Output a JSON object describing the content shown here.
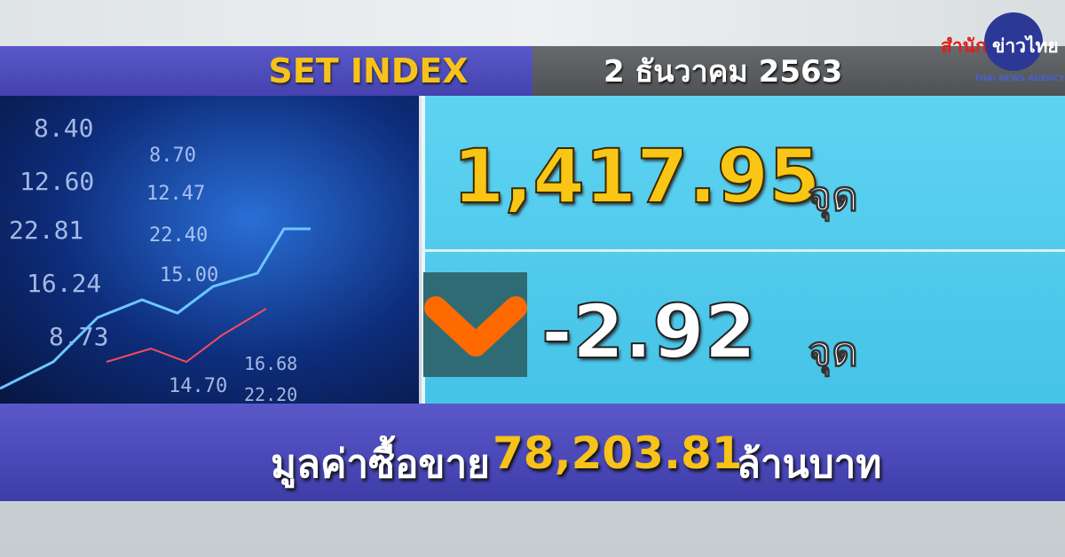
{
  "header": {
    "title": "SET INDEX",
    "date": "2 ธันวาคม 2563"
  },
  "logo": {
    "th_red": "สำนัก",
    "th_white": "ข่าวไทย",
    "en": "THAI NEWS AGENCY"
  },
  "index": {
    "value": "1,417.95",
    "unit": "จุด"
  },
  "change": {
    "value": "-2.92",
    "unit": "จุด",
    "direction": "down",
    "icon": "chevron-down-icon",
    "icon_color": "#ff6a00"
  },
  "turnover": {
    "label": "มูลค่าซื้อขาย",
    "value": "78,203.81",
    "unit": "ล้านบาท"
  },
  "photo_numbers": [
    "8.40",
    "12.60",
    "22.81",
    "16.24",
    "8.73",
    "8.70",
    "12.47",
    "22.40",
    "15.00",
    "14.70",
    "16.68",
    "22.20"
  ],
  "colors": {
    "title": "#f7c21a",
    "panel": "#4fc8ea",
    "bars": "#4a48b8"
  }
}
